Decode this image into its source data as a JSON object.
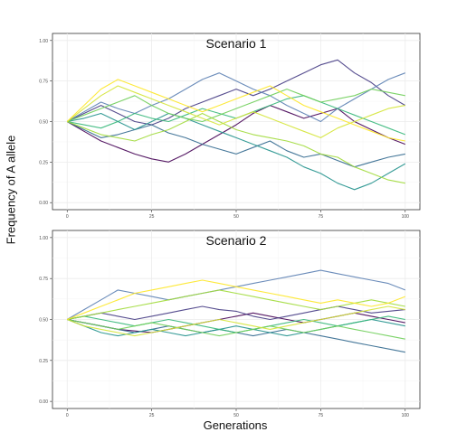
{
  "figure": {
    "ylabel": "Frequency of A allele",
    "xlabel": "Generations"
  },
  "chart_data": [
    {
      "type": "line",
      "title": "Scenario 1",
      "xlabel": "",
      "ylabel": "Frequency of A allele",
      "xlim": [
        0,
        100
      ],
      "ylim": [
        0,
        1
      ],
      "xticks": [
        0,
        25,
        50,
        75,
        100
      ],
      "yticks": [
        "0.00",
        "0.25",
        "0.50",
        "0.75",
        "1.00"
      ],
      "grid": true,
      "x": [
        0,
        5,
        10,
        15,
        20,
        25,
        30,
        35,
        40,
        45,
        50,
        55,
        60,
        65,
        70,
        75,
        80,
        85,
        90,
        95,
        100
      ],
      "series": [
        {
          "color": "#440154",
          "values": [
            0.5,
            0.44,
            0.38,
            0.34,
            0.3,
            0.27,
            0.25,
            0.3,
            0.36,
            0.42,
            0.48,
            0.55,
            0.6,
            0.56,
            0.52,
            0.55,
            0.58,
            0.5,
            0.45,
            0.4,
            0.36
          ]
        },
        {
          "color": "#443a83",
          "values": [
            0.5,
            0.55,
            0.6,
            0.55,
            0.5,
            0.48,
            0.52,
            0.58,
            0.62,
            0.66,
            0.7,
            0.66,
            0.7,
            0.75,
            0.8,
            0.85,
            0.88,
            0.8,
            0.74,
            0.66,
            0.6
          ]
        },
        {
          "color": "#31688e",
          "values": [
            0.5,
            0.45,
            0.4,
            0.42,
            0.45,
            0.48,
            0.43,
            0.4,
            0.36,
            0.33,
            0.3,
            0.34,
            0.38,
            0.32,
            0.28,
            0.3,
            0.26,
            0.22,
            0.25,
            0.28,
            0.3
          ]
        },
        {
          "color": "#5b7fb3",
          "values": [
            0.5,
            0.56,
            0.62,
            0.58,
            0.55,
            0.6,
            0.64,
            0.7,
            0.76,
            0.8,
            0.75,
            0.7,
            0.66,
            0.6,
            0.55,
            0.5,
            0.58,
            0.64,
            0.7,
            0.76,
            0.8
          ]
        },
        {
          "color": "#21918c",
          "values": [
            0.5,
            0.52,
            0.55,
            0.5,
            0.45,
            0.5,
            0.55,
            0.52,
            0.48,
            0.44,
            0.4,
            0.36,
            0.32,
            0.28,
            0.22,
            0.18,
            0.12,
            0.08,
            0.12,
            0.18,
            0.24
          ]
        },
        {
          "color": "#35b779",
          "values": [
            0.5,
            0.48,
            0.46,
            0.5,
            0.55,
            0.52,
            0.5,
            0.54,
            0.58,
            0.55,
            0.52,
            0.56,
            0.6,
            0.64,
            0.66,
            0.62,
            0.58,
            0.54,
            0.5,
            0.46,
            0.42
          ]
        },
        {
          "color": "#6ece58",
          "values": [
            0.5,
            0.54,
            0.58,
            0.62,
            0.66,
            0.6,
            0.55,
            0.52,
            0.5,
            0.54,
            0.58,
            0.62,
            0.66,
            0.7,
            0.66,
            0.62,
            0.64,
            0.66,
            0.7,
            0.68,
            0.66
          ]
        },
        {
          "color": "#a0da39",
          "values": [
            0.5,
            0.46,
            0.42,
            0.4,
            0.38,
            0.42,
            0.45,
            0.5,
            0.55,
            0.5,
            0.45,
            0.42,
            0.4,
            0.38,
            0.35,
            0.3,
            0.28,
            0.22,
            0.18,
            0.14,
            0.12
          ]
        },
        {
          "color": "#d4e435",
          "values": [
            0.5,
            0.58,
            0.66,
            0.72,
            0.68,
            0.64,
            0.6,
            0.56,
            0.52,
            0.48,
            0.52,
            0.56,
            0.52,
            0.48,
            0.44,
            0.4,
            0.46,
            0.5,
            0.54,
            0.58,
            0.6
          ]
        },
        {
          "color": "#fde725",
          "values": [
            0.5,
            0.6,
            0.7,
            0.76,
            0.72,
            0.68,
            0.64,
            0.6,
            0.56,
            0.6,
            0.64,
            0.68,
            0.72,
            0.66,
            0.6,
            0.56,
            0.52,
            0.48,
            0.44,
            0.4,
            0.38
          ]
        }
      ]
    },
    {
      "type": "line",
      "title": "Scenario 2",
      "xlabel": "Generations",
      "ylabel": "Frequency of A allele",
      "xlim": [
        0,
        100
      ],
      "ylim": [
        0,
        1
      ],
      "xticks": [
        0,
        25,
        50,
        75,
        100
      ],
      "yticks": [
        "0.00",
        "0.25",
        "0.50",
        "0.75",
        "1.00"
      ],
      "grid": true,
      "x": [
        0,
        5,
        10,
        15,
        20,
        25,
        30,
        35,
        40,
        45,
        50,
        55,
        60,
        65,
        70,
        75,
        80,
        85,
        90,
        95,
        100
      ],
      "series": [
        {
          "color": "#440154",
          "values": [
            0.5,
            0.48,
            0.46,
            0.44,
            0.43,
            0.42,
            0.44,
            0.46,
            0.48,
            0.5,
            0.52,
            0.54,
            0.52,
            0.5,
            0.48,
            0.5,
            0.52,
            0.54,
            0.52,
            0.5,
            0.48
          ]
        },
        {
          "color": "#443a83",
          "values": [
            0.5,
            0.52,
            0.54,
            0.52,
            0.5,
            0.52,
            0.54,
            0.56,
            0.58,
            0.56,
            0.55,
            0.52,
            0.5,
            0.52,
            0.54,
            0.56,
            0.58,
            0.56,
            0.54,
            0.55,
            0.56
          ]
        },
        {
          "color": "#31688e",
          "values": [
            0.5,
            0.48,
            0.46,
            0.44,
            0.42,
            0.44,
            0.46,
            0.44,
            0.42,
            0.44,
            0.42,
            0.4,
            0.42,
            0.44,
            0.42,
            0.4,
            0.38,
            0.36,
            0.34,
            0.32,
            0.3
          ]
        },
        {
          "color": "#5b7fb3",
          "values": [
            0.5,
            0.56,
            0.62,
            0.68,
            0.66,
            0.64,
            0.62,
            0.64,
            0.66,
            0.68,
            0.7,
            0.72,
            0.74,
            0.76,
            0.78,
            0.8,
            0.78,
            0.76,
            0.74,
            0.72,
            0.68
          ]
        },
        {
          "color": "#21918c",
          "values": [
            0.5,
            0.46,
            0.42,
            0.4,
            0.42,
            0.44,
            0.42,
            0.4,
            0.42,
            0.44,
            0.46,
            0.44,
            0.42,
            0.4,
            0.42,
            0.44,
            0.46,
            0.48,
            0.5,
            0.48,
            0.46
          ]
        },
        {
          "color": "#35b779",
          "values": [
            0.5,
            0.52,
            0.5,
            0.48,
            0.46,
            0.48,
            0.5,
            0.48,
            0.46,
            0.44,
            0.42,
            0.44,
            0.46,
            0.48,
            0.5,
            0.48,
            0.46,
            0.48,
            0.5,
            0.52,
            0.5
          ]
        },
        {
          "color": "#6ece58",
          "values": [
            0.5,
            0.48,
            0.46,
            0.44,
            0.46,
            0.48,
            0.46,
            0.44,
            0.42,
            0.4,
            0.42,
            0.44,
            0.46,
            0.44,
            0.42,
            0.44,
            0.46,
            0.44,
            0.42,
            0.4,
            0.38
          ]
        },
        {
          "color": "#a0da39",
          "values": [
            0.5,
            0.52,
            0.54,
            0.56,
            0.58,
            0.6,
            0.62,
            0.64,
            0.66,
            0.68,
            0.66,
            0.64,
            0.62,
            0.6,
            0.58,
            0.56,
            0.58,
            0.6,
            0.62,
            0.6,
            0.58
          ]
        },
        {
          "color": "#d4e435",
          "values": [
            0.5,
            0.46,
            0.44,
            0.42,
            0.4,
            0.42,
            0.44,
            0.46,
            0.48,
            0.5,
            0.48,
            0.46,
            0.44,
            0.46,
            0.48,
            0.5,
            0.52,
            0.54,
            0.56,
            0.58,
            0.56
          ]
        },
        {
          "color": "#fde725",
          "values": [
            0.5,
            0.54,
            0.58,
            0.62,
            0.66,
            0.68,
            0.7,
            0.72,
            0.74,
            0.72,
            0.7,
            0.68,
            0.66,
            0.64,
            0.62,
            0.6,
            0.62,
            0.6,
            0.58,
            0.6,
            0.64
          ]
        }
      ]
    }
  ]
}
